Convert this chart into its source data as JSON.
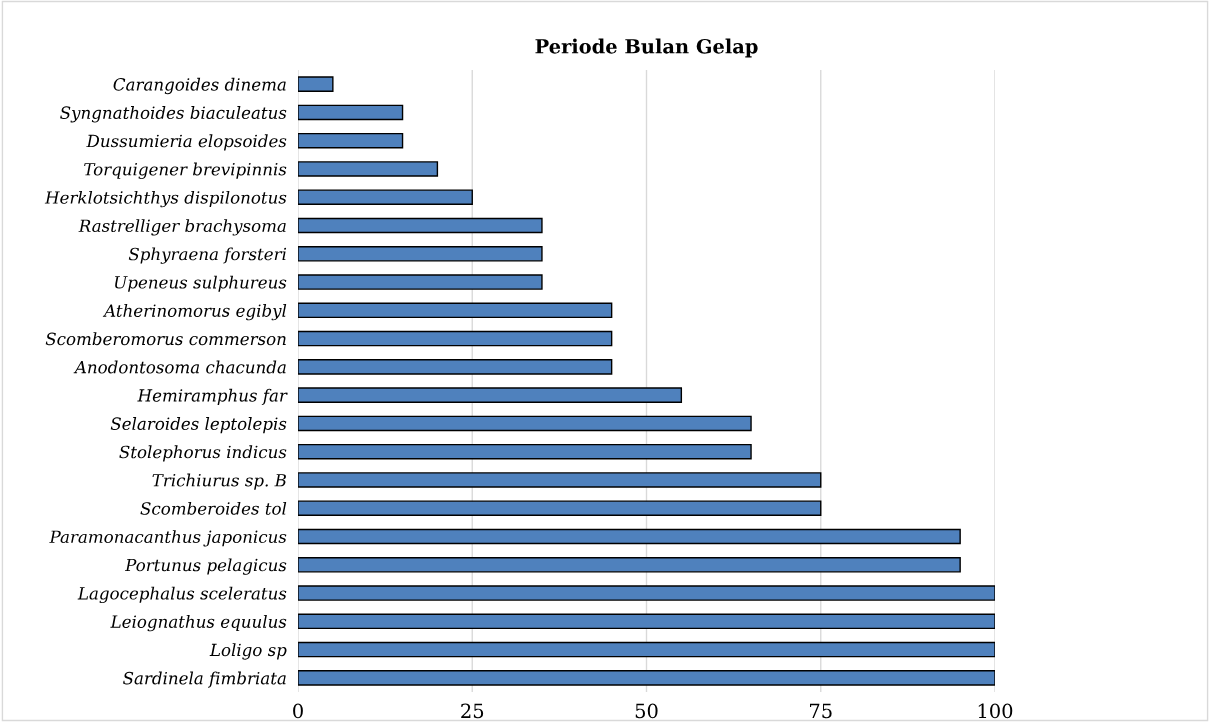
{
  "chart_data": {
    "type": "bar",
    "orientation": "horizontal",
    "title": "Periode Bulan Gelap",
    "categories": [
      "Carangoides dinema",
      "Syngnathoides biaculeatus",
      "Dussumieria elopsoides",
      "Torquigener brevipinnis",
      "Herklotsichthys dispilonotus",
      "Rastrelliger brachysoma",
      "Sphyraena forsteri",
      "Upeneus sulphureus",
      "Atherinomorus egibyl",
      "Scomberomorus commerson",
      "Anodontosoma chacunda",
      "Hemiramphus far",
      "Selaroides leptolepis",
      "Stolephorus indicus",
      "Trichiurus sp. B",
      "Scomberoides tol",
      "Paramonacanthus japonicus",
      "Portunus pelagicus",
      "Lagocephalus sceleratus",
      "Leiognathus equulus",
      "Loligo sp",
      "Sardinela fimbriata"
    ],
    "values": [
      5,
      15,
      15,
      20,
      25,
      35,
      35,
      35,
      45,
      45,
      45,
      55,
      65,
      65,
      75,
      75,
      95,
      95,
      100,
      100,
      100,
      100
    ],
    "color": "#4f81bd",
    "xlim": [
      0,
      100
    ],
    "xticks": [
      0,
      25,
      50,
      75,
      100
    ],
    "grid": "x"
  }
}
